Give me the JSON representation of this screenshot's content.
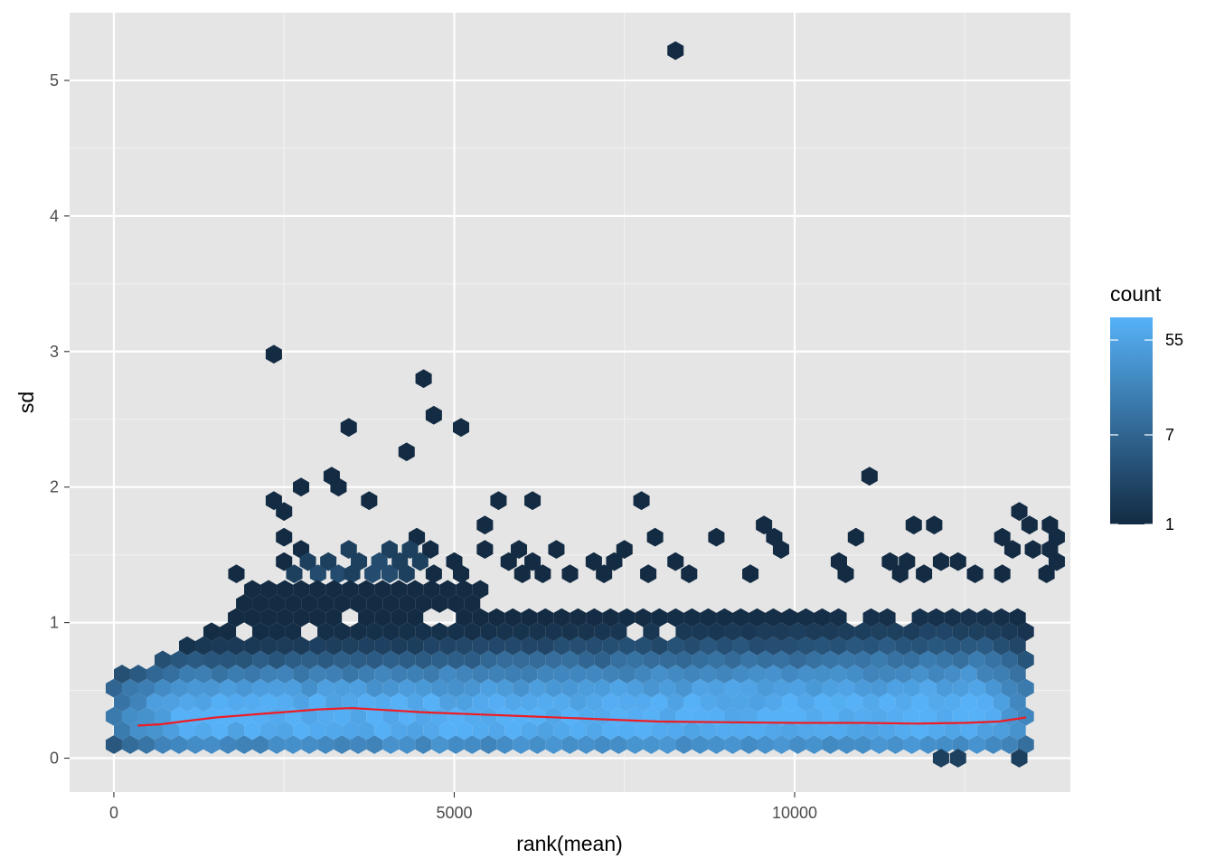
{
  "chart_data": {
    "type": "hexbin",
    "title": "",
    "xlabel": "rank(mean)",
    "ylabel": "sd",
    "xlim": [
      -650,
      14050
    ],
    "ylim": [
      -0.25,
      5.5
    ],
    "x_ticks": [
      0,
      5000,
      10000
    ],
    "x_tick_labels": [
      "0",
      "5000",
      "10000"
    ],
    "y_ticks": [
      0,
      1,
      2,
      3,
      4,
      5
    ],
    "y_tick_labels": [
      "0",
      "1",
      "2",
      "3",
      "4",
      "5"
    ],
    "grid": true,
    "background_color": "#e5e5e5",
    "legend": {
      "title": "count",
      "position": "right",
      "scale": "log",
      "breaks": [
        1,
        7,
        55
      ],
      "break_labels": [
        "1",
        "7",
        "55"
      ],
      "range": [
        1,
        90
      ],
      "low_color": "#132b43",
      "high_color": "#56b1f7"
    },
    "hex_bins": [
      [
        8250,
        5.22,
        1
      ],
      [
        2350,
        2.98,
        1
      ],
      [
        4550,
        2.8,
        1
      ],
      [
        4700,
        2.53,
        1
      ],
      [
        3450,
        2.44,
        1
      ],
      [
        5100,
        2.44,
        1
      ],
      [
        4300,
        2.26,
        1
      ],
      [
        3200,
        2.08,
        1
      ],
      [
        11100,
        2.08,
        1
      ],
      [
        2350,
        1.9,
        1
      ],
      [
        2750,
        2,
        1
      ],
      [
        3300,
        2,
        1
      ],
      [
        3750,
        1.9,
        1
      ],
      [
        5650,
        1.9,
        1
      ],
      [
        6150,
        1.9,
        1
      ],
      [
        7750,
        1.9,
        1
      ],
      [
        2500,
        1.82,
        1
      ],
      [
        13300,
        1.82,
        1
      ],
      [
        11750,
        1.72,
        1
      ],
      [
        12050,
        1.72,
        1
      ],
      [
        13450,
        1.72,
        1
      ],
      [
        13750,
        1.72,
        1
      ],
      [
        5450,
        1.72,
        1
      ],
      [
        9550,
        1.72,
        1
      ],
      [
        2500,
        1.63,
        1
      ],
      [
        4450,
        1.63,
        1
      ],
      [
        7950,
        1.63,
        1
      ],
      [
        8850,
        1.63,
        1
      ],
      [
        9700,
        1.63,
        1
      ],
      [
        10900,
        1.63,
        1
      ],
      [
        13050,
        1.63,
        1
      ],
      [
        13850,
        1.63,
        1
      ],
      [
        2750,
        1.54,
        1
      ],
      [
        3450,
        1.54,
        2
      ],
      [
        4050,
        1.54,
        2
      ],
      [
        4350,
        1.54,
        2
      ],
      [
        4650,
        1.54,
        1
      ],
      [
        5450,
        1.54,
        1
      ],
      [
        5950,
        1.54,
        1
      ],
      [
        6500,
        1.54,
        1
      ],
      [
        7500,
        1.54,
        1
      ],
      [
        9800,
        1.54,
        1
      ],
      [
        13200,
        1.54,
        1
      ],
      [
        13500,
        1.54,
        1
      ],
      [
        13750,
        1.54,
        1
      ],
      [
        2500,
        1.45,
        1
      ],
      [
        2850,
        1.45,
        2
      ],
      [
        3150,
        1.45,
        2
      ],
      [
        3600,
        1.45,
        2
      ],
      [
        3900,
        1.45,
        3
      ],
      [
        4200,
        1.45,
        2
      ],
      [
        4500,
        1.45,
        2
      ],
      [
        5000,
        1.45,
        1
      ],
      [
        5800,
        1.45,
        1
      ],
      [
        6150,
        1.45,
        1
      ],
      [
        7050,
        1.45,
        1
      ],
      [
        7350,
        1.45,
        1
      ],
      [
        8250,
        1.45,
        1
      ],
      [
        10650,
        1.45,
        1
      ],
      [
        11400,
        1.45,
        1
      ],
      [
        11650,
        1.45,
        1
      ],
      [
        12150,
        1.45,
        1
      ],
      [
        12400,
        1.45,
        1
      ],
      [
        13850,
        1.45,
        1
      ],
      [
        1800,
        1.36,
        1
      ],
      [
        2650,
        1.36,
        2
      ],
      [
        3000,
        1.36,
        3
      ],
      [
        3300,
        1.36,
        3
      ],
      [
        3500,
        1.36,
        2
      ],
      [
        3800,
        1.36,
        3
      ],
      [
        4050,
        1.36,
        3
      ],
      [
        4300,
        1.36,
        2
      ],
      [
        4700,
        1.36,
        1
      ],
      [
        5100,
        1.36,
        1
      ],
      [
        6000,
        1.36,
        1
      ],
      [
        6300,
        1.36,
        1
      ],
      [
        6700,
        1.36,
        1
      ],
      [
        7200,
        1.36,
        1
      ],
      [
        7850,
        1.36,
        1
      ],
      [
        8450,
        1.36,
        1
      ],
      [
        9350,
        1.36,
        1
      ],
      [
        10750,
        1.36,
        1
      ],
      [
        11550,
        1.36,
        1
      ],
      [
        11900,
        1.36,
        1
      ],
      [
        12650,
        1.36,
        1
      ],
      [
        13050,
        1.36,
        1
      ],
      [
        13700,
        1.36,
        1
      ]
    ],
    "trend_line": {
      "color": "#ee1c25",
      "x": [
        350,
        700,
        1000,
        1500,
        2000,
        2500,
        3000,
        3500,
        4000,
        4500,
        5000,
        6000,
        7000,
        8000,
        9000,
        10000,
        11000,
        11800,
        12500,
        13000,
        13400
      ],
      "y": [
        0.24,
        0.25,
        0.27,
        0.3,
        0.32,
        0.34,
        0.36,
        0.37,
        0.355,
        0.34,
        0.33,
        0.31,
        0.29,
        0.27,
        0.265,
        0.26,
        0.26,
        0.255,
        0.26,
        0.27,
        0.3
      ]
    }
  }
}
